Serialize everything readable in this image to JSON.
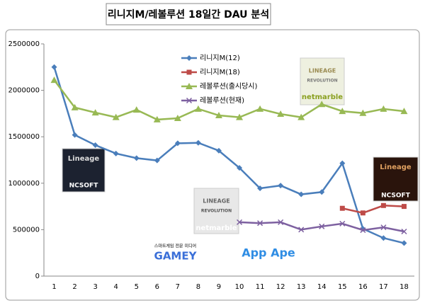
{
  "chart_data": {
    "type": "line",
    "title": "리니지M/레볼루션 18일간 DAU 분석",
    "categories": [
      "1",
      "2",
      "3",
      "4",
      "5",
      "6",
      "7",
      "8",
      "9",
      "10",
      "11",
      "12",
      "13",
      "14",
      "15",
      "16",
      "17",
      "18"
    ],
    "ylim": [
      0,
      2500000
    ],
    "yticks": [
      0,
      500000,
      1000000,
      1500000,
      2000000,
      2500000
    ],
    "grid": false,
    "legend": "top",
    "series": [
      {
        "name": "리니지M(12)",
        "color": "#4a7ebb",
        "marker": "diamond",
        "values": [
          2250000,
          1520000,
          1410000,
          1320000,
          1270000,
          1245000,
          1430000,
          1435000,
          1350000,
          1165000,
          945000,
          975000,
          880000,
          905000,
          1215000,
          510000,
          410000,
          355000
        ]
      },
      {
        "name": "리니지M(18)",
        "color": "#be4b48",
        "marker": "square",
        "values": [
          null,
          null,
          null,
          null,
          null,
          null,
          null,
          null,
          null,
          null,
          null,
          null,
          null,
          null,
          730000,
          680000,
          760000,
          750000
        ]
      },
      {
        "name": "레볼루션(출시당시)",
        "color": "#98b954",
        "marker": "triangle",
        "values": [
          2110000,
          1815000,
          1760000,
          1710000,
          1790000,
          1685000,
          1700000,
          1800000,
          1730000,
          1710000,
          1800000,
          1745000,
          1710000,
          1850000,
          1775000,
          1755000,
          1800000,
          1775000
        ]
      },
      {
        "name": "레볼루션(현재)",
        "color": "#7d60a0",
        "marker": "x",
        "values": [
          null,
          null,
          null,
          null,
          null,
          null,
          null,
          null,
          null,
          580000,
          570000,
          580000,
          500000,
          535000,
          565000,
          495000,
          525000,
          480000
        ]
      }
    ],
    "annotations": [
      "Lineage",
      "NCSOFT",
      "LINEAGE",
      "REVOLUTION",
      "netmarble",
      "LINEAGE",
      "REVOLUTION",
      "netmarble",
      "Lineage",
      "NCSOFT",
      "스마트게임 전문 미디어",
      "GAMEY",
      "App Ape"
    ]
  }
}
